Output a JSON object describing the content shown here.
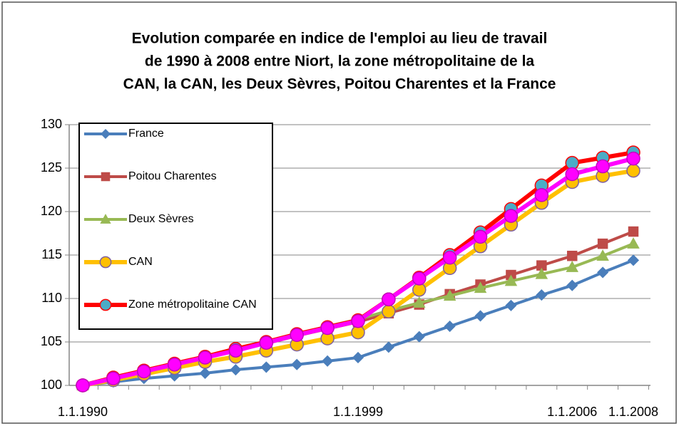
{
  "chart_data": {
    "type": "line",
    "title": [
      "Evolution comparée en indice de l'emploi au lieu de travail",
      "de 1990 à 2008 entre Niort, la zone métropolitaine de la",
      "CAN, la CAN, les Deux Sèvres, Poitou Charentes et la France"
    ],
    "categories": [
      "1.1.1990",
      null,
      null,
      null,
      null,
      null,
      null,
      null,
      null,
      "1.1.1999",
      null,
      null,
      null,
      null,
      null,
      null,
      "1.1.2006",
      null,
      "1.1.2008"
    ],
    "ylim": [
      100,
      130
    ],
    "yticks": [
      100,
      105,
      110,
      115,
      120,
      125,
      130
    ],
    "grid": true,
    "legend": "top-left",
    "series": [
      {
        "name": "France",
        "color": "#4a7ebb",
        "marker": "diamond",
        "marker_fill": "#4a7ebb",
        "marker_stroke": "#4a7ebb",
        "values": [
          100,
          100.4,
          100.8,
          101.1,
          101.4,
          101.8,
          102.1,
          102.4,
          102.8,
          103.2,
          104.4,
          105.6,
          106.8,
          108.0,
          109.2,
          110.4,
          111.5,
          113.0,
          114.4
        ]
      },
      {
        "name": "Poitou Charentes",
        "color": "#be4b48",
        "marker": "square",
        "marker_fill": "#be4b48",
        "marker_stroke": "#be4b48",
        "values": [
          100,
          100.8,
          101.5,
          102.3,
          103.2,
          104.0,
          104.8,
          105.7,
          106.5,
          107.3,
          108.3,
          109.3,
          110.5,
          111.6,
          112.7,
          113.8,
          114.9,
          116.3,
          117.7
        ]
      },
      {
        "name": "Deux Sèvres",
        "color": "#98b954",
        "marker": "triangle",
        "marker_fill": "#98b954",
        "marker_stroke": "#98b954",
        "values": [
          100,
          100.9,
          101.7,
          102.5,
          103.3,
          104.2,
          105.0,
          105.9,
          106.8,
          107.6,
          108.6,
          109.5,
          110.3,
          111.2,
          112.0,
          112.8,
          113.6,
          114.9,
          116.3
        ]
      },
      {
        "name": "CAN",
        "color": "#ffc000",
        "marker": "circle",
        "marker_fill": "#ffc000",
        "marker_stroke": "#7f60a0",
        "values": [
          100,
          100.6,
          101.3,
          102.0,
          102.7,
          103.3,
          104.0,
          104.7,
          105.4,
          106.1,
          108.5,
          111.0,
          113.5,
          116.0,
          118.5,
          121.0,
          123.4,
          124.1,
          124.7
        ]
      },
      {
        "name": "Zone métropolitaine CAN",
        "color": "#ff0000",
        "marker": "circle",
        "marker_fill": "#4bacc6",
        "marker_stroke": "#ff0000",
        "values": [
          100,
          100.9,
          101.7,
          102.5,
          103.3,
          104.2,
          105.0,
          105.9,
          106.7,
          107.5,
          109.9,
          112.4,
          115.0,
          117.6,
          120.3,
          123.0,
          125.6,
          126.2,
          126.8
        ]
      },
      {
        "color": "#ff00ff",
        "marker": "circle",
        "marker_fill": "#ff00ff",
        "marker_stroke": "#c000c0",
        "values": [
          100,
          100.8,
          101.6,
          102.4,
          103.2,
          104.0,
          104.9,
          105.8,
          106.6,
          107.4,
          109.9,
          112.3,
          114.7,
          117.1,
          119.5,
          121.9,
          124.3,
          125.2,
          126.1
        ]
      }
    ]
  }
}
